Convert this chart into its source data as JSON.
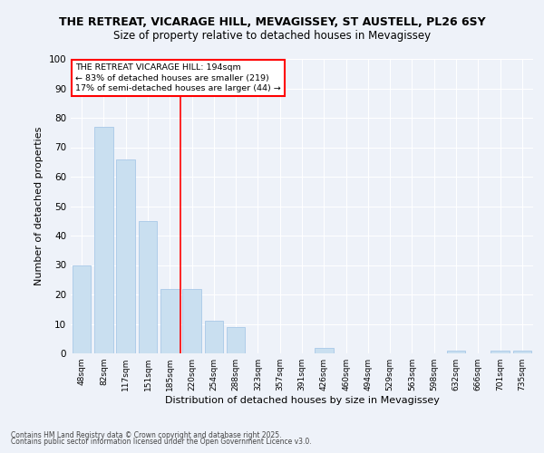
{
  "title1": "THE RETREAT, VICARAGE HILL, MEVAGISSEY, ST AUSTELL, PL26 6SY",
  "title2": "Size of property relative to detached houses in Mevagissey",
  "xlabel": "Distribution of detached houses by size in Mevagissey",
  "ylabel": "Number of detached properties",
  "categories": [
    "48sqm",
    "82sqm",
    "117sqm",
    "151sqm",
    "185sqm",
    "220sqm",
    "254sqm",
    "288sqm",
    "323sqm",
    "357sqm",
    "391sqm",
    "426sqm",
    "460sqm",
    "494sqm",
    "529sqm",
    "563sqm",
    "598sqm",
    "632sqm",
    "666sqm",
    "701sqm",
    "735sqm"
  ],
  "values": [
    30,
    77,
    66,
    45,
    22,
    22,
    11,
    9,
    0,
    0,
    0,
    2,
    0,
    0,
    0,
    0,
    0,
    1,
    0,
    1,
    1
  ],
  "bar_color": "#c9dff0",
  "bar_edge_color": "#a8c8e8",
  "vline_x": 4.5,
  "vline_color": "red",
  "annotation_text": "THE RETREAT VICARAGE HILL: 194sqm\n← 83% of detached houses are smaller (219)\n17% of semi-detached houses are larger (44) →",
  "annotation_box_color": "white",
  "annotation_box_edge": "red",
  "footer1": "Contains HM Land Registry data © Crown copyright and database right 2025.",
  "footer2": "Contains public sector information licensed under the Open Government Licence v3.0.",
  "ylim": [
    0,
    100
  ],
  "background_color": "#eef2f9",
  "grid_color": "#ffffff",
  "title_fontsize": 9,
  "subtitle_fontsize": 8.5,
  "tick_fontsize": 6.5,
  "ylabel_fontsize": 8,
  "xlabel_fontsize": 8,
  "footer_fontsize": 5.5
}
